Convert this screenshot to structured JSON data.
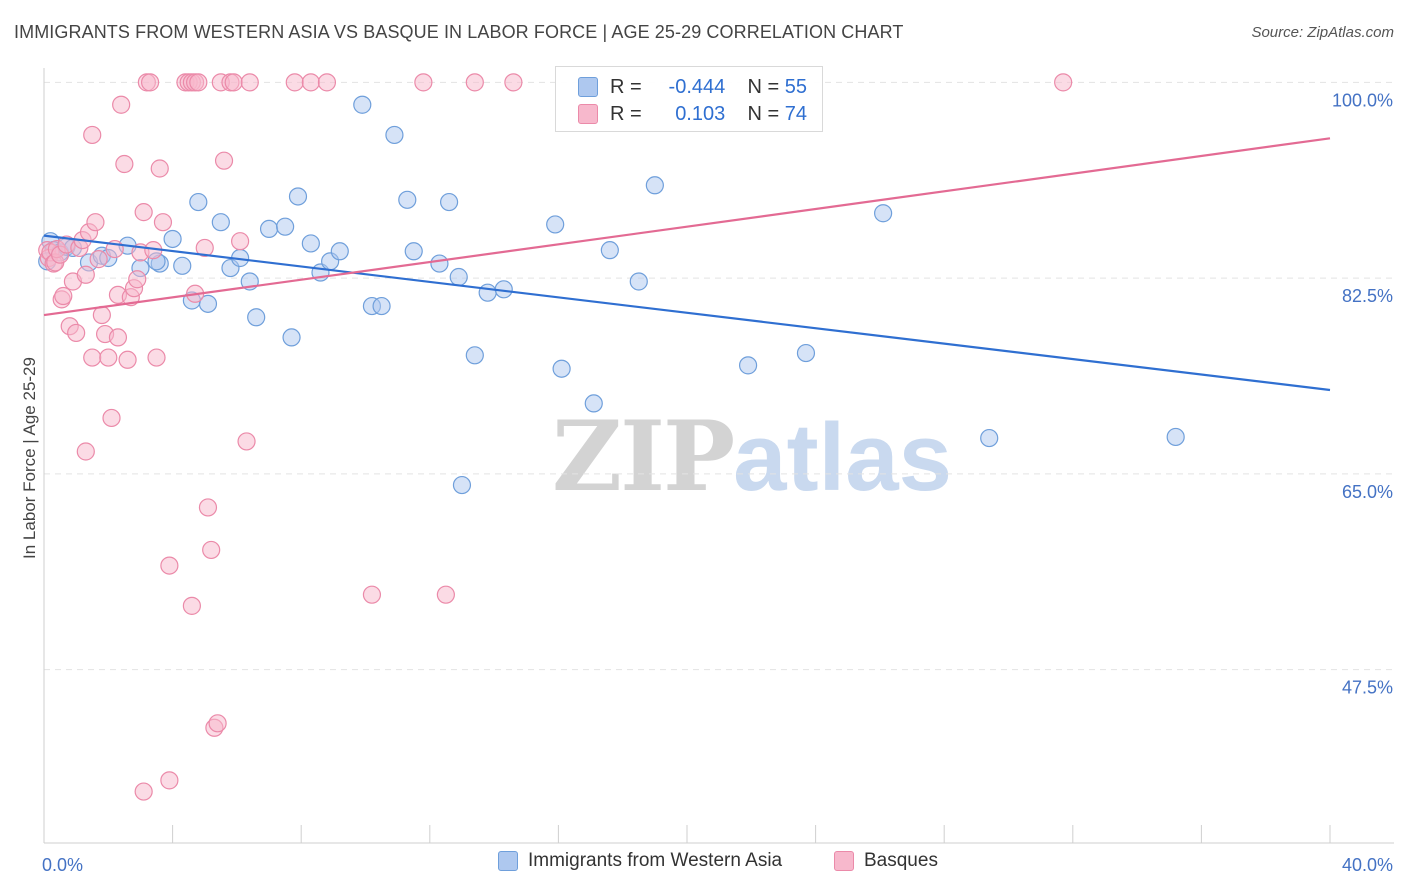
{
  "title": "IMMIGRANTS FROM WESTERN ASIA VS BASQUE IN LABOR FORCE | AGE 25-29 CORRELATION CHART",
  "source": "Source: ZipAtlas.com",
  "watermark": {
    "zip": "ZIP",
    "atlas": "atlas"
  },
  "colors": {
    "blue_fill": "#aec8ef",
    "blue_stroke": "#6f9fdb",
    "blue_line": "#2f6fd1",
    "pink_fill": "#f7b8cc",
    "pink_stroke": "#eb8aa9",
    "pink_line": "#e36a93",
    "grid": "#e3e3e3",
    "tick_text": "#4472c4"
  },
  "legend": {
    "rows": [
      {
        "r_label": "R =",
        "r_value": "-0.444",
        "n_label": "N =",
        "n_value": "55"
      },
      {
        "r_label": "R =",
        "r_value": "0.103",
        "n_label": "N =",
        "n_value": "74"
      }
    ],
    "bottom": [
      "Immigrants from Western Asia",
      "Basques"
    ]
  },
  "chart_data": {
    "type": "scatter",
    "title": "IMMIGRANTS FROM WESTERN ASIA VS BASQUE IN LABOR FORCE | AGE 25-29 CORRELATION CHART",
    "xlabel": "",
    "ylabel": "In Labor Force | Age 25-29",
    "xlim": [
      0,
      40
    ],
    "ylim": [
      32,
      102
    ],
    "x_tick_labels": [
      {
        "value": 0,
        "label": "0.0%"
      },
      {
        "value": 40,
        "label": "40.0%"
      }
    ],
    "y_tick_labels": [
      {
        "value": 100,
        "label": "100.0%"
      },
      {
        "value": 82.5,
        "label": "82.5%"
      },
      {
        "value": 65,
        "label": "65.0%"
      },
      {
        "value": 47.5,
        "label": "47.5%"
      }
    ],
    "legend_position": "top-center",
    "series": [
      {
        "name": "Immigrants from Western Asia",
        "color": "#aec8ef",
        "trend": {
          "x": [
            0,
            40
          ],
          "y": [
            86.3,
            72.5
          ]
        },
        "points": [
          [
            0.2,
            85.8
          ],
          [
            0.3,
            85.0
          ],
          [
            0.5,
            84.8
          ],
          [
            0.7,
            85.3
          ],
          [
            0.9,
            85.2
          ],
          [
            1.4,
            83.9
          ],
          [
            1.8,
            84.5
          ],
          [
            2.0,
            84.3
          ],
          [
            2.6,
            85.4
          ],
          [
            3.0,
            83.4
          ],
          [
            3.6,
            83.8
          ],
          [
            3.5,
            84.0
          ],
          [
            4.0,
            86.0
          ],
          [
            4.3,
            83.6
          ],
          [
            4.6,
            80.5
          ],
          [
            4.8,
            89.3
          ],
          [
            5.1,
            80.2
          ],
          [
            5.5,
            87.5
          ],
          [
            5.8,
            83.4
          ],
          [
            6.1,
            84.3
          ],
          [
            6.4,
            82.2
          ],
          [
            6.6,
            79.0
          ],
          [
            7.0,
            86.9
          ],
          [
            7.5,
            87.1
          ],
          [
            7.7,
            77.2
          ],
          [
            7.9,
            89.8
          ],
          [
            8.3,
            85.6
          ],
          [
            8.6,
            83.0
          ],
          [
            8.9,
            84.0
          ],
          [
            9.2,
            84.9
          ],
          [
            9.9,
            98.0
          ],
          [
            10.2,
            80.0
          ],
          [
            10.5,
            80.0
          ],
          [
            10.9,
            95.3
          ],
          [
            11.3,
            89.5
          ],
          [
            11.5,
            84.9
          ],
          [
            12.3,
            83.8
          ],
          [
            12.6,
            89.3
          ],
          [
            12.9,
            82.6
          ],
          [
            13.4,
            75.6
          ],
          [
            13.8,
            81.2
          ],
          [
            14.3,
            81.5
          ],
          [
            13.0,
            64.0
          ],
          [
            15.9,
            87.3
          ],
          [
            16.1,
            74.4
          ],
          [
            17.1,
            71.3
          ],
          [
            17.6,
            85.0
          ],
          [
            18.5,
            82.2
          ],
          [
            19.0,
            90.8
          ],
          [
            21.9,
            74.7
          ],
          [
            23.7,
            75.8
          ],
          [
            26.1,
            88.3
          ],
          [
            29.4,
            68.2
          ],
          [
            35.2,
            68.3
          ],
          [
            0.1,
            84.0
          ]
        ]
      },
      {
        "name": "Basques",
        "color": "#f7b8cc",
        "trend": {
          "x": [
            0,
            40
          ],
          "y": [
            79.2,
            95.0
          ]
        },
        "points": [
          [
            0.1,
            85.0
          ],
          [
            0.15,
            84.3
          ],
          [
            0.2,
            84.8
          ],
          [
            0.3,
            83.8
          ],
          [
            0.35,
            83.9
          ],
          [
            0.4,
            85.1
          ],
          [
            0.5,
            84.6
          ],
          [
            0.55,
            80.6
          ],
          [
            0.6,
            80.9
          ],
          [
            0.7,
            85.5
          ],
          [
            0.8,
            78.2
          ],
          [
            0.9,
            82.2
          ],
          [
            1.0,
            77.6
          ],
          [
            1.1,
            85.2
          ],
          [
            1.2,
            85.9
          ],
          [
            1.3,
            82.8
          ],
          [
            1.3,
            67.0
          ],
          [
            1.4,
            86.6
          ],
          [
            1.5,
            75.4
          ],
          [
            1.5,
            95.3
          ],
          [
            1.6,
            87.5
          ],
          [
            1.7,
            84.2
          ],
          [
            1.8,
            79.2
          ],
          [
            1.9,
            77.5
          ],
          [
            2.0,
            75.4
          ],
          [
            2.1,
            70.0
          ],
          [
            2.2,
            85.1
          ],
          [
            2.3,
            81.0
          ],
          [
            2.3,
            77.2
          ],
          [
            2.4,
            98.0
          ],
          [
            2.5,
            92.7
          ],
          [
            2.6,
            75.2
          ],
          [
            2.7,
            80.8
          ],
          [
            2.8,
            81.6
          ],
          [
            2.9,
            82.4
          ],
          [
            3.0,
            84.8
          ],
          [
            3.1,
            88.4
          ],
          [
            3.2,
            100.0
          ],
          [
            3.3,
            100.0
          ],
          [
            3.4,
            85.0
          ],
          [
            3.5,
            75.4
          ],
          [
            3.6,
            92.3
          ],
          [
            3.7,
            87.5
          ],
          [
            3.9,
            56.8
          ],
          [
            4.4,
            100.0
          ],
          [
            4.5,
            100.0
          ],
          [
            4.6,
            100.0
          ],
          [
            4.7,
            100.0
          ],
          [
            4.8,
            100.0
          ],
          [
            4.6,
            53.2
          ],
          [
            4.7,
            81.1
          ],
          [
            5.0,
            85.2
          ],
          [
            5.1,
            62.0
          ],
          [
            5.2,
            58.2
          ],
          [
            5.3,
            42.3
          ],
          [
            5.4,
            42.7
          ],
          [
            5.5,
            100.0
          ],
          [
            5.6,
            93.0
          ],
          [
            5.8,
            100.0
          ],
          [
            5.9,
            100.0
          ],
          [
            6.1,
            85.8
          ],
          [
            6.3,
            67.9
          ],
          [
            6.4,
            100.0
          ],
          [
            7.8,
            100.0
          ],
          [
            8.3,
            100.0
          ],
          [
            8.8,
            100.0
          ],
          [
            10.2,
            54.2
          ],
          [
            11.8,
            100.0
          ],
          [
            12.5,
            54.2
          ],
          [
            13.4,
            100.0
          ],
          [
            14.6,
            100.0
          ],
          [
            3.9,
            37.6
          ],
          [
            3.1,
            36.6
          ],
          [
            31.7,
            100.0
          ]
        ]
      }
    ]
  }
}
